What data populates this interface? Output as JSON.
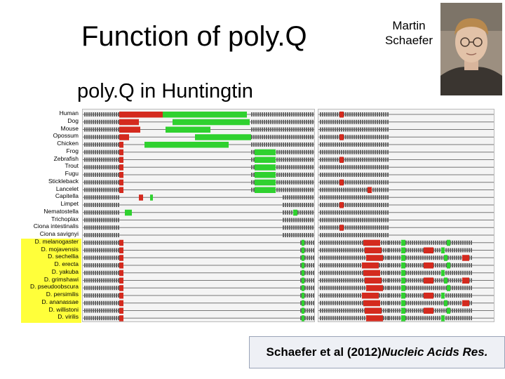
{
  "slide": {
    "title": "Function of poly.Q",
    "author_line1": "Martin",
    "author_line2": "Schaefer",
    "subtitle": "poly.Q in Huntingtin",
    "citation_main": "Schaefer et al (2012) ",
    "citation_journal": "Nucleic Acids Res."
  },
  "species": [
    "Human",
    "Dog",
    "Mouse",
    "Opossum",
    "Chicken",
    "Frog",
    "Zebrafish",
    "Trout",
    "Fugu",
    "Stickleback",
    "Lancelet",
    "Capitella",
    "Limpet",
    "Nematostella",
    "Trichoplax",
    "Ciona intestinalis",
    "Ciona savignyi",
    "D. melanogaster",
    "D. mojavensis",
    "D. sechellia",
    "D. erecta",
    "D. yakuba",
    "D. grimshawi",
    "D. pseudoobscura",
    "D. persimilis",
    "D. ananassae",
    "D. willistoni",
    "D. virilis"
  ],
  "colors": {
    "polyQ": "#d42a1e",
    "polyP": "#2fd12f",
    "highlight": "#ffff3a"
  },
  "icons": {
    "portrait": "person-photo-icon"
  }
}
